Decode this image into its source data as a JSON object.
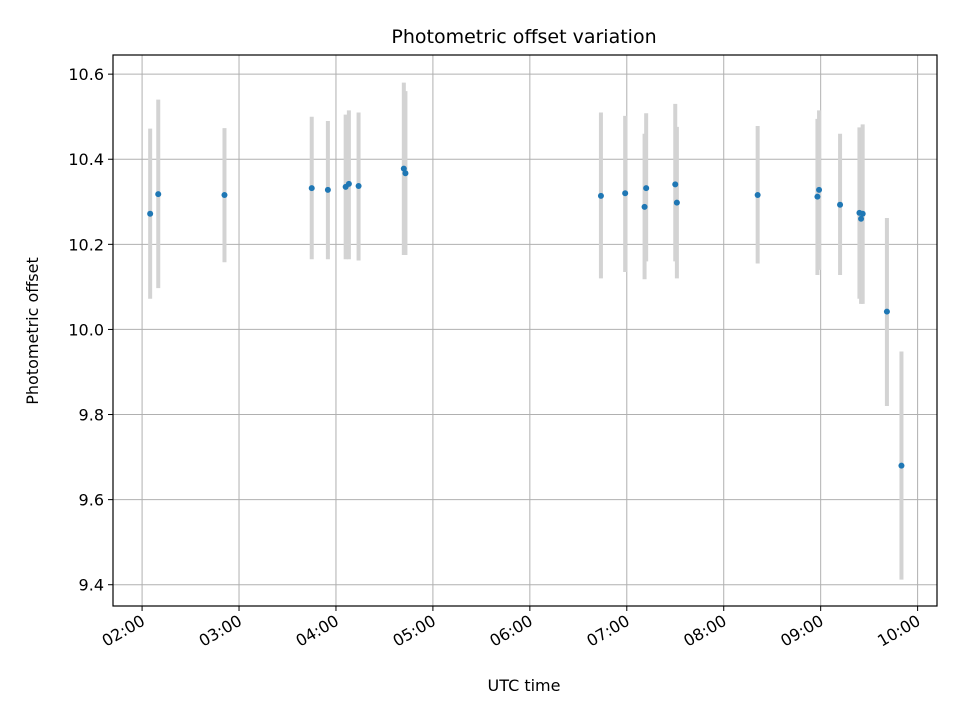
{
  "chart_data": {
    "type": "scatter",
    "title": "Photometric offset variation",
    "xlabel": "UTC time",
    "ylabel": "Photometric offset",
    "x_ticks": [
      "02:00",
      "03:00",
      "04:00",
      "05:00",
      "06:00",
      "07:00",
      "08:00",
      "09:00",
      "10:00"
    ],
    "y_ticks": [
      "9.4",
      "9.6",
      "9.8",
      "10.0",
      "10.2",
      "10.4",
      "10.6"
    ],
    "xlim": [
      "01:42",
      "10:12"
    ],
    "ylim": [
      9.35,
      10.645
    ],
    "grid": true,
    "marker_color": "#1f77b4",
    "errorbar_color": "#d3d3d3",
    "points": [
      {
        "x": "02:05",
        "y": 10.272,
        "lo": 10.072,
        "hi": 10.472
      },
      {
        "x": "02:10",
        "y": 10.318,
        "lo": 10.097,
        "hi": 10.54
      },
      {
        "x": "02:51",
        "y": 10.316,
        "lo": 10.158,
        "hi": 10.473
      },
      {
        "x": "03:45",
        "y": 10.332,
        "lo": 10.165,
        "hi": 10.5
      },
      {
        "x": "03:55",
        "y": 10.328,
        "lo": 10.165,
        "hi": 10.49
      },
      {
        "x": "04:06",
        "y": 10.335,
        "lo": 10.165,
        "hi": 10.505
      },
      {
        "x": "04:08",
        "y": 10.342,
        "lo": 10.165,
        "hi": 10.515
      },
      {
        "x": "04:14",
        "y": 10.337,
        "lo": 10.162,
        "hi": 10.51
      },
      {
        "x": "04:42",
        "y": 10.378,
        "lo": 10.175,
        "hi": 10.58
      },
      {
        "x": "04:43",
        "y": 10.367,
        "lo": 10.175,
        "hi": 10.56
      },
      {
        "x": "06:44",
        "y": 10.314,
        "lo": 10.12,
        "hi": 10.51
      },
      {
        "x": "06:59",
        "y": 10.32,
        "lo": 10.135,
        "hi": 10.502
      },
      {
        "x": "07:11",
        "y": 10.288,
        "lo": 10.118,
        "hi": 10.46
      },
      {
        "x": "07:12",
        "y": 10.332,
        "lo": 10.16,
        "hi": 10.508
      },
      {
        "x": "07:30",
        "y": 10.341,
        "lo": 10.16,
        "hi": 10.53
      },
      {
        "x": "07:31",
        "y": 10.298,
        "lo": 10.12,
        "hi": 10.476
      },
      {
        "x": "08:21",
        "y": 10.316,
        "lo": 10.155,
        "hi": 10.478
      },
      {
        "x": "08:58",
        "y": 10.312,
        "lo": 10.128,
        "hi": 10.495
      },
      {
        "x": "08:59",
        "y": 10.328,
        "lo": 10.14,
        "hi": 10.515
      },
      {
        "x": "09:12",
        "y": 10.293,
        "lo": 10.128,
        "hi": 10.46
      },
      {
        "x": "09:24",
        "y": 10.274,
        "lo": 10.072,
        "hi": 10.475
      },
      {
        "x": "09:25",
        "y": 10.26,
        "lo": 10.06,
        "hi": 10.47
      },
      {
        "x": "09:26",
        "y": 10.272,
        "lo": 10.06,
        "hi": 10.482
      },
      {
        "x": "09:41",
        "y": 10.042,
        "lo": 9.82,
        "hi": 10.262
      },
      {
        "x": "09:50",
        "y": 9.68,
        "lo": 9.412,
        "hi": 9.948
      }
    ]
  }
}
